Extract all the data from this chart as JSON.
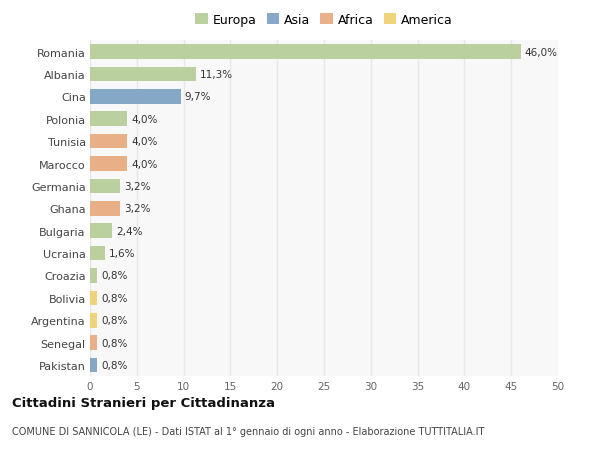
{
  "categories": [
    "Romania",
    "Albania",
    "Cina",
    "Polonia",
    "Tunisia",
    "Marocco",
    "Germania",
    "Ghana",
    "Bulgaria",
    "Ucraina",
    "Croazia",
    "Bolivia",
    "Argentina",
    "Senegal",
    "Pakistan"
  ],
  "values": [
    46.0,
    11.3,
    9.7,
    4.0,
    4.0,
    4.0,
    3.2,
    3.2,
    2.4,
    1.6,
    0.8,
    0.8,
    0.8,
    0.8,
    0.8
  ],
  "labels": [
    "46,0%",
    "11,3%",
    "9,7%",
    "4,0%",
    "4,0%",
    "4,0%",
    "3,2%",
    "3,2%",
    "2,4%",
    "1,6%",
    "0,8%",
    "0,8%",
    "0,8%",
    "0,8%",
    "0,8%"
  ],
  "colors": [
    "#b5cc96",
    "#b5cc96",
    "#7a9fc2",
    "#b5cc96",
    "#e8a87c",
    "#e8a87c",
    "#b5cc96",
    "#e8a87c",
    "#b5cc96",
    "#b5cc96",
    "#b5cc96",
    "#f0cf6e",
    "#f0cf6e",
    "#e8a87c",
    "#7a9fc2"
  ],
  "legend_labels": [
    "Europa",
    "Asia",
    "Africa",
    "America"
  ],
  "legend_colors": [
    "#b5cc96",
    "#7a9fc2",
    "#e8a87c",
    "#f0cf6e"
  ],
  "xlim": [
    0,
    50
  ],
  "xticks": [
    0,
    5,
    10,
    15,
    20,
    25,
    30,
    35,
    40,
    45,
    50
  ],
  "title": "Cittadini Stranieri per Cittadinanza",
  "subtitle": "COMUNE DI SANNICOLA (LE) - Dati ISTAT al 1° gennaio di ogni anno - Elaborazione TUTTITALIA.IT",
  "bg_color": "#ffffff",
  "plot_bg_color": "#f8f8f8",
  "grid_color": "#e8e8e8",
  "bar_height": 0.65
}
